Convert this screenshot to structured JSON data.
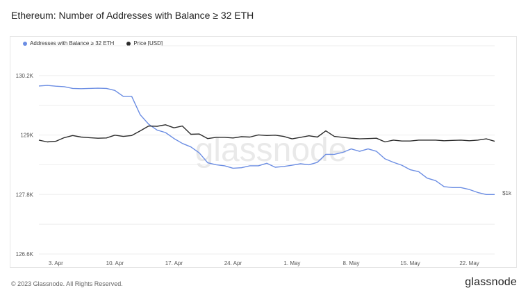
{
  "title": "Ethereum: Number of Addresses with Balance ≥ 32 ETH",
  "footer": "© 2023 Glassnode. All Rights Reserved.",
  "brand": "glassnode",
  "watermark": "glassnode",
  "colors": {
    "addresses": "#6b8de3",
    "price": "#2b2b2b",
    "grid": "#eeeeee"
  },
  "legend": [
    {
      "label": "Addresses with Balance ≥ 32 ETH",
      "color": "#6b8de3"
    },
    {
      "label": "Price [USD]",
      "color": "#2b2b2b"
    }
  ],
  "chart_data": {
    "type": "line",
    "x_ticks": [
      "3. Apr",
      "10. Apr",
      "17. Apr",
      "24. Apr",
      "1. May",
      "8. May",
      "15. May",
      "22. May"
    ],
    "y_left_ticks": [
      "130.2K",
      "129K",
      "127.8K",
      "126.6K"
    ],
    "y_right_ticks": [
      "$1k"
    ],
    "ylim_left": [
      126600,
      130800
    ],
    "x_range_days": [
      0,
      54
    ],
    "price_range": [
      0,
      3400
    ],
    "series": [
      {
        "name": "Addresses with Balance ≥ 32 ETH",
        "axis": "left",
        "x": [
          0,
          1,
          2,
          3,
          4,
          5,
          6,
          7,
          8,
          9,
          10,
          11,
          12,
          13,
          14,
          15,
          16,
          17,
          18,
          19,
          20,
          21,
          22,
          23,
          24,
          25,
          26,
          27,
          28,
          29,
          30,
          31,
          32,
          33,
          34,
          35,
          36,
          37,
          38,
          39,
          40,
          41,
          42,
          43,
          44,
          45,
          46,
          47,
          48,
          49,
          50,
          51,
          52,
          53,
          54
        ],
        "values": [
          129990,
          130000,
          129985,
          129975,
          129940,
          129935,
          129940,
          129945,
          129940,
          129900,
          129780,
          129780,
          129410,
          129220,
          129100,
          129050,
          128930,
          128830,
          128760,
          128640,
          128440,
          128400,
          128380,
          128330,
          128340,
          128380,
          128380,
          128430,
          128350,
          128365,
          128390,
          128420,
          128400,
          128450,
          128610,
          128610,
          128650,
          128720,
          128670,
          128720,
          128670,
          128520,
          128450,
          128390,
          128300,
          128260,
          128130,
          128080,
          127960,
          127940,
          127940,
          127900,
          127840,
          127800,
          127800
        ]
      },
      {
        "name": "Price [USD]",
        "axis": "right",
        "x": [
          0,
          1,
          2,
          3,
          4,
          5,
          6,
          7,
          8,
          9,
          10,
          11,
          12,
          13,
          14,
          15,
          16,
          17,
          18,
          19,
          20,
          21,
          22,
          23,
          24,
          25,
          26,
          27,
          28,
          29,
          30,
          31,
          32,
          33,
          34,
          35,
          36,
          37,
          38,
          39,
          40,
          41,
          42,
          43,
          44,
          45,
          46,
          47,
          48,
          49,
          50,
          51,
          52,
          53,
          54
        ],
        "values": [
          1860,
          1830,
          1840,
          1900,
          1935,
          1910,
          1900,
          1890,
          1895,
          1940,
          1920,
          1935,
          2010,
          2090,
          2085,
          2110,
          2060,
          2090,
          1955,
          1960,
          1885,
          1905,
          1905,
          1895,
          1915,
          1910,
          1945,
          1935,
          1940,
          1920,
          1880,
          1905,
          1930,
          1910,
          2010,
          1920,
          1905,
          1890,
          1880,
          1885,
          1890,
          1830,
          1860,
          1845,
          1845,
          1860,
          1860,
          1860,
          1850,
          1855,
          1860,
          1850,
          1860,
          1880,
          1840
        ]
      }
    ]
  }
}
